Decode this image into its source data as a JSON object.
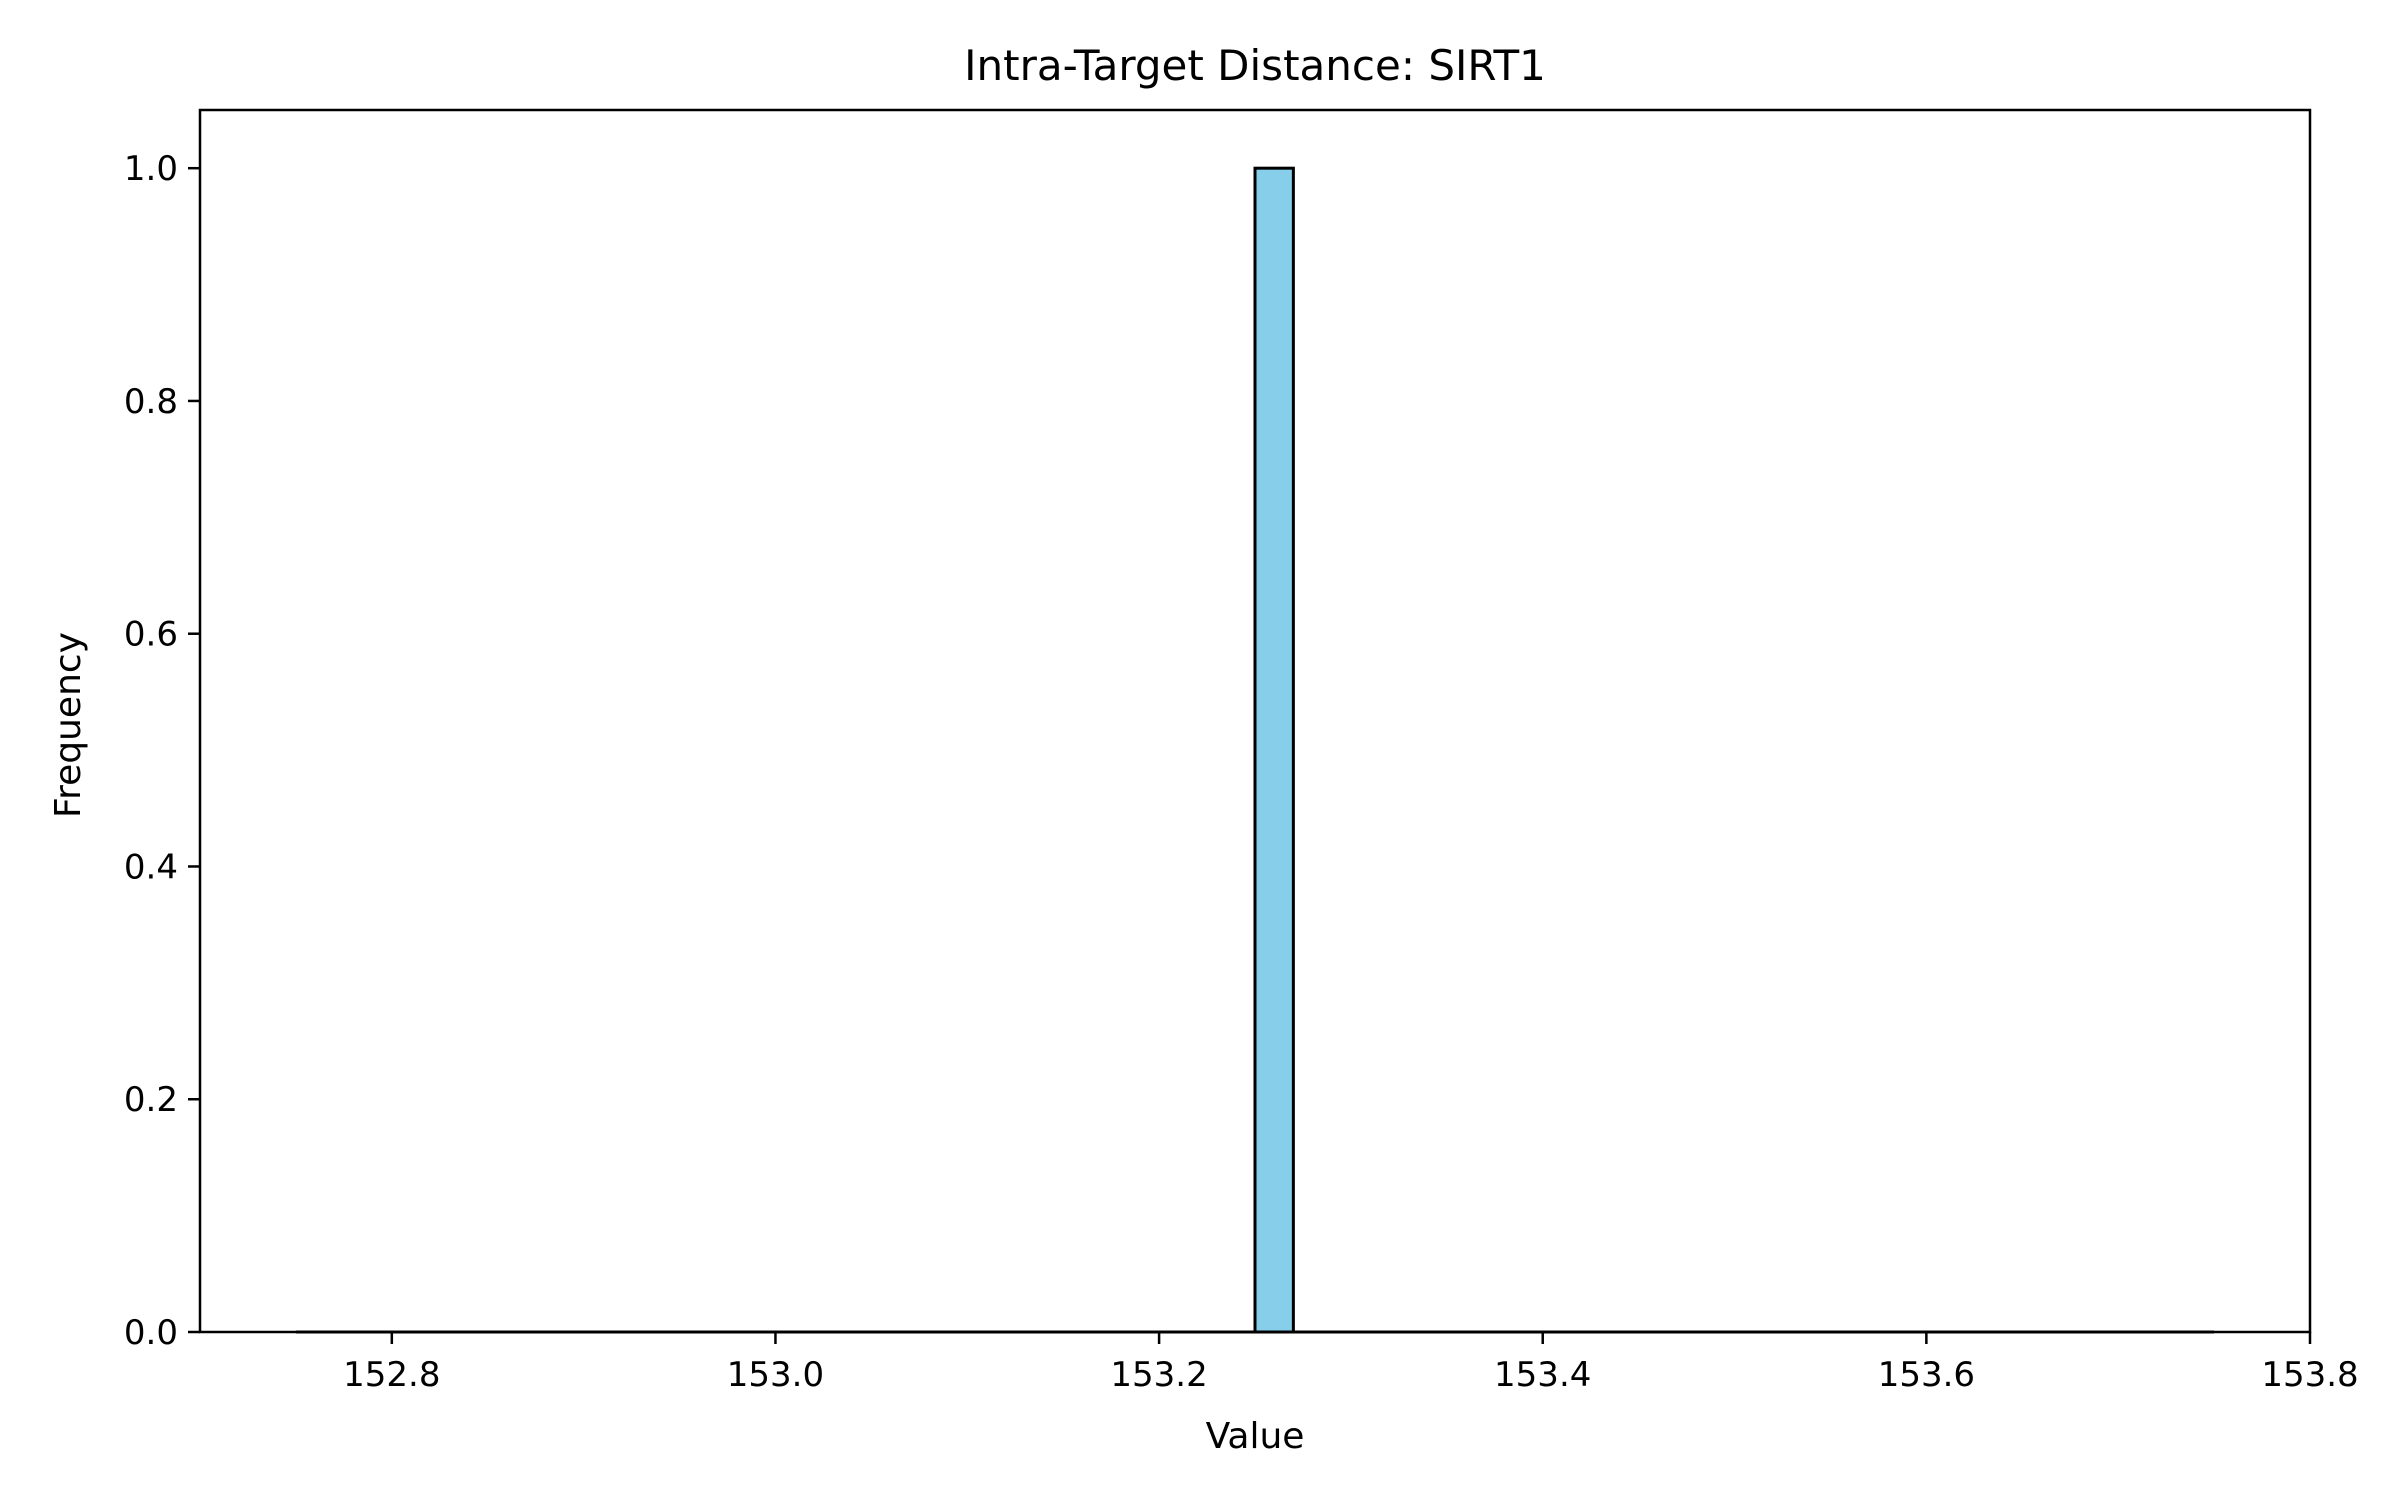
{
  "chart_data": {
    "type": "bar",
    "title": "Intra-Target Distance: SIRT1",
    "xlabel": "Value",
    "ylabel": "Frequency",
    "xlim": [
      152.7,
      153.8
    ],
    "ylim": [
      0,
      1.05
    ],
    "xticks": [
      "152.8",
      "153.0",
      "153.2",
      "153.4",
      "153.6",
      "153.8"
    ],
    "yticks": [
      "0.0",
      "0.2",
      "0.4",
      "0.6",
      "0.8",
      "1.0"
    ],
    "bin_range": [
      152.75,
      153.75
    ],
    "bins": [
      {
        "x0": 153.25,
        "x1": 153.27,
        "count": 1
      }
    ],
    "grid": false,
    "colors": {
      "bar_fill": "#87ceeb",
      "bar_edge": "#000000",
      "axis": "#000000",
      "background": "#ffffff"
    }
  }
}
